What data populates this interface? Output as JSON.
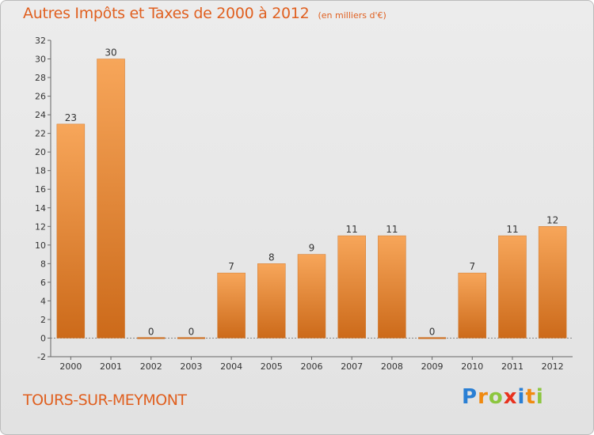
{
  "header": {
    "title": "Autres Impôts et Taxes de 2000 à 2012",
    "unit": "(en milliers d'€)"
  },
  "footer": {
    "commune": "TOURS-SUR-MEYMONT",
    "logo_letters": [
      "P",
      "r",
      "o",
      "x",
      "i",
      "t",
      "i"
    ],
    "logo_colors": [
      "#2a7fd4",
      "#f08a10",
      "#8cc63f",
      "#e8321e",
      "#2a7fd4",
      "#f08a10",
      "#8cc63f"
    ]
  },
  "colors": {
    "bar_top": "#f7a65a",
    "bar_bottom": "#cc6a1a",
    "accent": "#e06020"
  },
  "chart_data": {
    "type": "bar",
    "title": "Autres Impôts et Taxes de 2000 à 2012",
    "subtitle": "(en milliers d'€)",
    "categories": [
      "2000",
      "2001",
      "2002",
      "2003",
      "2004",
      "2005",
      "2006",
      "2007",
      "2008",
      "2009",
      "2010",
      "2011",
      "2012"
    ],
    "values": [
      23,
      30,
      0,
      0,
      7,
      8,
      9,
      11,
      11,
      0,
      7,
      11,
      12
    ],
    "value_labels": [
      "23",
      "30",
      "0",
      "0",
      "7",
      "8",
      "9",
      "11",
      "11",
      "0",
      "7",
      "11",
      "12"
    ],
    "y_ticks": [
      "-2",
      "0",
      "2",
      "4",
      "6",
      "8",
      "10",
      "12",
      "14",
      "16",
      "18",
      "20",
      "22",
      "24",
      "26",
      "28",
      "30",
      "32"
    ],
    "ylim": [
      -2,
      32
    ],
    "xlabel": "",
    "ylabel": "",
    "grid": false,
    "legend": "none"
  }
}
